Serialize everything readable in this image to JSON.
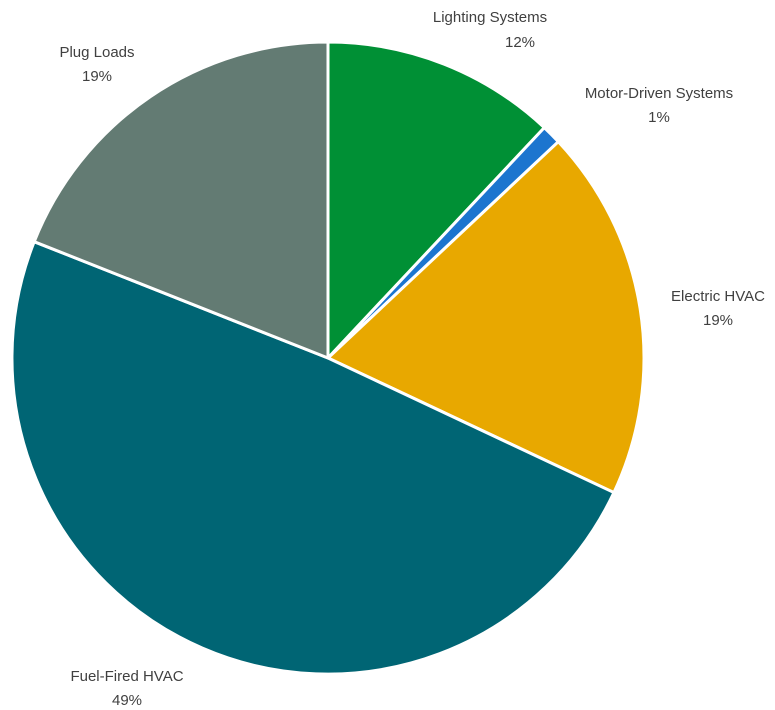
{
  "chart_data": {
    "type": "pie",
    "categories": [
      "Lighting Systems",
      "Motor-Driven Systems",
      "Electric HVAC",
      "Fuel-Fired HVAC",
      "Plug Loads"
    ],
    "values": [
      12,
      1,
      19,
      49,
      19
    ],
    "value_labels": [
      "12%",
      "1%",
      "19%",
      "49%",
      "19%"
    ],
    "colors": [
      "#009035",
      "#1c75cf",
      "#e8a800",
      "#006574",
      "#637b73"
    ],
    "start": "12 o'clock",
    "direction": "clockwise",
    "title": "",
    "legend": "none"
  }
}
